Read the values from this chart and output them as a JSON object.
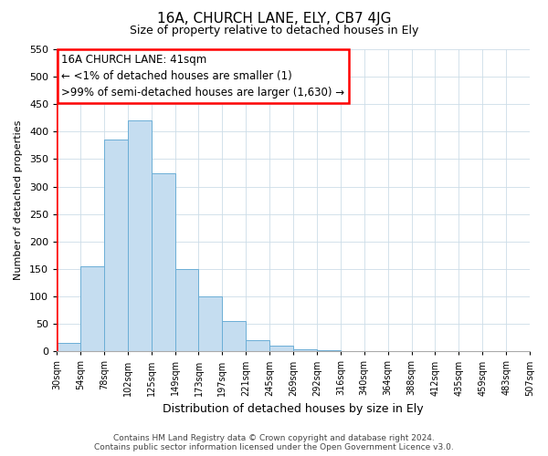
{
  "title": "16A, CHURCH LANE, ELY, CB7 4JG",
  "subtitle": "Size of property relative to detached houses in Ely",
  "bar_values": [
    15,
    155,
    385,
    420,
    325,
    150,
    100,
    55,
    20,
    10,
    3,
    2,
    1,
    1,
    1,
    1,
    1,
    1,
    1,
    1
  ],
  "x_labels": [
    "30sqm",
    "54sqm",
    "78sqm",
    "102sqm",
    "125sqm",
    "149sqm",
    "173sqm",
    "197sqm",
    "221sqm",
    "245sqm",
    "269sqm",
    "292sqm",
    "316sqm",
    "340sqm",
    "364sqm",
    "388sqm",
    "412sqm",
    "435sqm",
    "459sqm",
    "483sqm",
    "507sqm"
  ],
  "bar_color": "#c5ddf0",
  "bar_edge_color": "#6baed6",
  "ylabel": "Number of detached properties",
  "xlabel": "Distribution of detached houses by size in Ely",
  "ylim": [
    0,
    550
  ],
  "yticks": [
    0,
    50,
    100,
    150,
    200,
    250,
    300,
    350,
    400,
    450,
    500,
    550
  ],
  "annotation_title": "16A CHURCH LANE: 41sqm",
  "annotation_line2": "← <1% of detached houses are smaller (1)",
  "annotation_line3": ">99% of semi-detached houses are larger (1,630) →",
  "red_line_x": 0,
  "footer_text": "Contains HM Land Registry data © Crown copyright and database right 2024.\nContains public sector information licensed under the Open Government Licence v3.0.",
  "background_color": "#ffffff",
  "grid_color": "#ccdde8"
}
